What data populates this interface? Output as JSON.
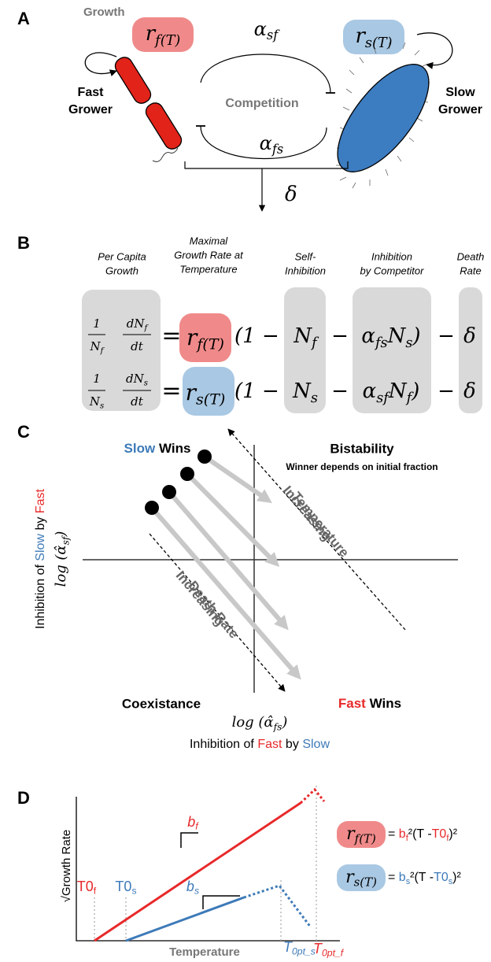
{
  "panel_a": {
    "label": "A",
    "growth": "Growth",
    "rate_fast": [
      {
        "base": "r",
        "sub": "f(T)"
      }
    ],
    "rate_slow": [
      {
        "base": "r",
        "sub": "s(T)"
      }
    ],
    "alpha_sf": [
      {
        "base": "α",
        "sub": "sf"
      }
    ],
    "alpha_fs": [
      {
        "base": "α",
        "sub": "fs"
      }
    ],
    "fast_grower": [
      "Fast",
      "Grower"
    ],
    "slow_grower": [
      "Slow",
      "Grower"
    ],
    "competition": "Competition",
    "death": "δ"
  },
  "panel_b": {
    "label": "B",
    "headers": [
      [
        "Per Capita",
        "Growth"
      ],
      [
        "Maximal",
        "Growth Rate at",
        "Temperature"
      ],
      [
        "Self-",
        "Inhibition"
      ],
      [
        "Inhibition",
        "by Competitor"
      ],
      [
        "Death",
        "Rate"
      ]
    ],
    "equations": [
      [
        [
          {
            "base": "1"
          }
        ],
        [
          {
            "base": "N",
            "sub": "f"
          }
        ],
        [
          {
            "base": "dN",
            "sub": "f"
          }
        ],
        [
          {
            "base": "dt"
          }
        ],
        [
          {
            "base": "="
          }
        ],
        [
          {
            "base": "r",
            "sub": "f(T)"
          }
        ],
        [
          {
            "base": "(1 −"
          }
        ],
        [
          {
            "base": "N",
            "sub": "f"
          }
        ],
        [
          {
            "base": "−"
          }
        ],
        [
          {
            "base": "α",
            "sub": "fs"
          },
          {
            "base": "N",
            "sub": "s"
          },
          {
            "base": ")"
          }
        ],
        [
          {
            "base": "−"
          }
        ],
        [
          {
            "base": "δ"
          }
        ]
      ],
      [
        [
          {
            "base": "1"
          }
        ],
        [
          {
            "base": "N",
            "sub": "s"
          }
        ],
        [
          {
            "base": "dN",
            "sub": "s"
          }
        ],
        [
          {
            "base": "dt"
          }
        ],
        [
          {
            "base": "="
          }
        ],
        [
          {
            "base": "r",
            "sub": "s(T)"
          }
        ],
        [
          {
            "base": "(1 −"
          }
        ],
        [
          {
            "base": "N",
            "sub": "s"
          }
        ],
        [
          {
            "base": "−"
          }
        ],
        [
          {
            "base": "α",
            "sub": "sf"
          },
          {
            "base": "N",
            "sub": "f"
          },
          {
            "base": ")"
          }
        ],
        [
          {
            "base": "−"
          }
        ],
        [
          {
            "base": "δ"
          }
        ]
      ]
    ]
  },
  "panel_c": {
    "label": "C",
    "slow_wins": [
      {
        "base": "Slow",
        "color": "#3d7ab8"
      },
      {
        "base": "Wins"
      }
    ],
    "bistability": "Bistability",
    "bistability_note": "Winner depends on initial fraction",
    "temperature_arrow": [
      "Increasing",
      "Temperature"
    ],
    "death_arrow": [
      "Increasing",
      "Death Rate"
    ],
    "coexistence": "Coexistance",
    "fast_wins": [
      {
        "base": "Fast",
        "color": "#e8292a"
      },
      {
        "base": "Wins"
      }
    ],
    "y_label": [
      {
        "base": "Inhibition of"
      },
      {
        "base": "Slow",
        "color": "#3d7ab8"
      },
      {
        "base": "by"
      },
      {
        "base": "Fast",
        "color": "#e8292a"
      }
    ],
    "y_math": [
      {
        "base": "log (α̂",
        "sub": "sf"
      },
      {
        "base": ")"
      }
    ],
    "x_math": [
      {
        "base": "log (α̂",
        "sub": "fs"
      },
      {
        "base": ")"
      }
    ],
    "x_label": [
      {
        "base": "Inhibition of"
      },
      {
        "base": "Fast",
        "color": "#e8292a"
      },
      {
        "base": "by"
      },
      {
        "base": "Slow",
        "color": "#3d7ab8"
      }
    ]
  },
  "panel_d": {
    "label": "D",
    "y_label": "√Growth Rate",
    "x_label": "Temperature",
    "t0_fast": [
      {
        "base": "T0",
        "sub": "f",
        "color": "#e8292a"
      }
    ],
    "t0_slow": [
      {
        "base": "T0",
        "sub": "s",
        "color": "#3d7ab8"
      }
    ],
    "b_fast": [
      {
        "base": "b",
        "sub": "f",
        "color": "#e8292a"
      }
    ],
    "b_slow": [
      {
        "base": "b",
        "sub": "s",
        "color": "#3d7ab8"
      }
    ],
    "topt_slow": [
      {
        "base": "T",
        "sub": "0pt_s",
        "color": "#3d7ab8"
      }
    ],
    "topt_fast": [
      {
        "base": "T",
        "sub": "0pt_f",
        "color": "#e8292a"
      }
    ],
    "eq_fast_rate": [
      {
        "base": "r",
        "sub": "f(T)"
      }
    ],
    "eq_fast": [
      {
        "base": "= "
      },
      {
        "base": "b",
        "sub": "f",
        "color": "#e8292a"
      },
      {
        "base": "²(T -"
      },
      {
        "base": "T0",
        "sub": "f",
        "color": "#e8292a"
      },
      {
        "base": ")²"
      }
    ],
    "eq_slow_rate": [
      {
        "base": "r",
        "sub": "s(T)"
      }
    ],
    "eq_slow": [
      {
        "base": "= "
      },
      {
        "base": "b",
        "sub": "s",
        "color": "#3d7ab8"
      },
      {
        "base": "²(T -"
      },
      {
        "base": "T0",
        "sub": "s",
        "color": "#3d7ab8"
      },
      {
        "base": ")²"
      }
    ]
  }
}
